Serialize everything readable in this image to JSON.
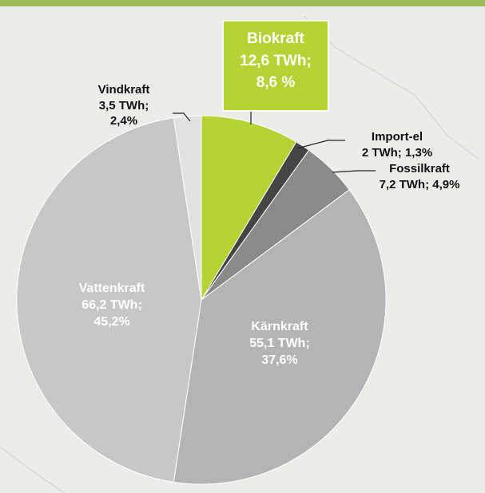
{
  "chart_data": {
    "type": "pie",
    "categories": [
      "Biokraft",
      "Import-el",
      "Fossilkraft",
      "Kärnkraft",
      "Vattenkraft",
      "Vindkraft"
    ],
    "values": [
      8.6,
      1.3,
      4.9,
      37.6,
      45.2,
      2.4
    ],
    "value_labels": [
      "12,6 TWh; 8,6 %",
      "2 TWh; 1,3%",
      "7,2 TWh; 4,9%",
      "55,1 TWh; 37,6%",
      "66,2 TWh; 45,2%",
      "3,5 TWh; 2,4%"
    ],
    "colors": [
      "#b5d334",
      "#454545",
      "#8a8a8a",
      "#b4b4b4",
      "#c7c7c7",
      "#e1e1e1"
    ]
  }
}
